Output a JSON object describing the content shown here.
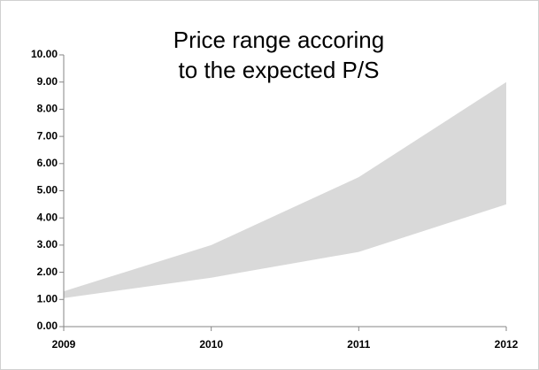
{
  "chart_data": {
    "type": "range-area",
    "title": [
      "Price range accoring",
      "to the expected P/S"
    ],
    "categories": [
      "2009",
      "2010",
      "2011",
      "2012"
    ],
    "lower": [
      1.05,
      1.8,
      2.75,
      4.5
    ],
    "upper": [
      1.3,
      3.0,
      5.5,
      9.0
    ],
    "color": "#d9d9d9",
    "ylim": [
      0,
      10
    ],
    "yticks": [
      {
        "value": 0,
        "label": "0.00"
      },
      {
        "value": 1,
        "label": "1.00"
      },
      {
        "value": 2,
        "label": "2.00"
      },
      {
        "value": 3,
        "label": "3.00"
      },
      {
        "value": 4,
        "label": "4.00"
      },
      {
        "value": 5,
        "label": "5.00"
      },
      {
        "value": 6,
        "label": "6.00"
      },
      {
        "value": 7,
        "label": "7.00"
      },
      {
        "value": 8,
        "label": "8.00"
      },
      {
        "value": 9,
        "label": "9.00"
      },
      {
        "value": 10,
        "label": "10.00"
      }
    ]
  }
}
